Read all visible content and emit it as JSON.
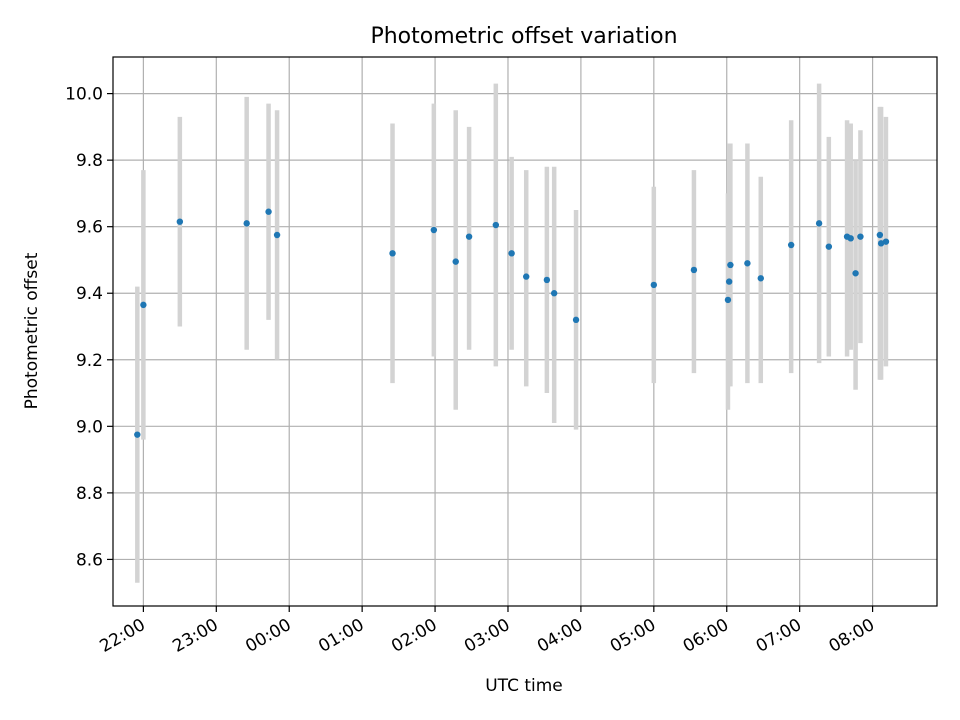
{
  "chart_data": {
    "type": "scatter",
    "title": "Photometric offset variation",
    "xlabel": "UTC time",
    "ylabel": "Photometric offset",
    "x_ticks": [
      "22:00",
      "23:00",
      "00:00",
      "01:00",
      "02:00",
      "03:00",
      "04:00",
      "05:00",
      "06:00",
      "07:00",
      "08:00"
    ],
    "y_ticks": [
      "8.6",
      "8.8",
      "9.0",
      "9.2",
      "9.4",
      "9.6",
      "9.8",
      "10.0"
    ],
    "xlim": [
      "21:35",
      "08:53"
    ],
    "ylim": [
      8.46,
      10.11
    ],
    "grid": true,
    "series": [
      {
        "marker_color": "#1f77b4",
        "errorbar_color": "#d3d3d3",
        "points": [
          {
            "t": "21:55",
            "y": 8.975,
            "lo": 8.53,
            "hi": 9.42
          },
          {
            "t": "22:00",
            "y": 9.365,
            "lo": 8.96,
            "hi": 9.77
          },
          {
            "t": "22:30",
            "y": 9.615,
            "lo": 9.3,
            "hi": 9.93
          },
          {
            "t": "23:25",
            "y": 9.61,
            "lo": 9.23,
            "hi": 9.99
          },
          {
            "t": "23:43",
            "y": 9.645,
            "lo": 9.32,
            "hi": 9.97
          },
          {
            "t": "23:50",
            "y": 9.575,
            "lo": 9.2,
            "hi": 9.95
          },
          {
            "t": "01:25",
            "y": 9.52,
            "lo": 9.13,
            "hi": 9.91
          },
          {
            "t": "01:59",
            "y": 9.59,
            "lo": 9.21,
            "hi": 9.97
          },
          {
            "t": "02:17",
            "y": 9.495,
            "lo": 9.05,
            "hi": 9.95
          },
          {
            "t": "02:28",
            "y": 9.57,
            "lo": 9.23,
            "hi": 9.9
          },
          {
            "t": "02:50",
            "y": 9.605,
            "lo": 9.18,
            "hi": 10.03
          },
          {
            "t": "03:03",
            "y": 9.52,
            "lo": 9.23,
            "hi": 9.81
          },
          {
            "t": "03:15",
            "y": 9.45,
            "lo": 9.12,
            "hi": 9.77
          },
          {
            "t": "03:32",
            "y": 9.44,
            "lo": 9.1,
            "hi": 9.78
          },
          {
            "t": "03:38",
            "y": 9.4,
            "lo": 9.01,
            "hi": 9.78
          },
          {
            "t": "03:56",
            "y": 9.32,
            "lo": 8.99,
            "hi": 9.65
          },
          {
            "t": "05:00",
            "y": 9.425,
            "lo": 9.13,
            "hi": 9.72
          },
          {
            "t": "05:33",
            "y": 9.47,
            "lo": 9.16,
            "hi": 9.77
          },
          {
            "t": "06:01",
            "y": 9.38,
            "lo": 9.05,
            "hi": 9.7
          },
          {
            "t": "06:02",
            "y": 9.435,
            "lo": 9.12,
            "hi": 9.85
          },
          {
            "t": "06:03",
            "y": 9.485,
            "lo": 9.12,
            "hi": 9.85
          },
          {
            "t": "06:17",
            "y": 9.49,
            "lo": 9.13,
            "hi": 9.85
          },
          {
            "t": "06:28",
            "y": 9.445,
            "lo": 9.13,
            "hi": 9.75
          },
          {
            "t": "06:53",
            "y": 9.545,
            "lo": 9.16,
            "hi": 9.92
          },
          {
            "t": "07:16",
            "y": 9.61,
            "lo": 9.19,
            "hi": 10.03
          },
          {
            "t": "07:24",
            "y": 9.54,
            "lo": 9.21,
            "hi": 9.87
          },
          {
            "t": "07:39",
            "y": 9.57,
            "lo": 9.21,
            "hi": 9.92
          },
          {
            "t": "07:42",
            "y": 9.565,
            "lo": 9.23,
            "hi": 9.91
          },
          {
            "t": "07:46",
            "y": 9.46,
            "lo": 9.11,
            "hi": 9.8
          },
          {
            "t": "07:50",
            "y": 9.57,
            "lo": 9.25,
            "hi": 9.89
          },
          {
            "t": "08:06",
            "y": 9.575,
            "lo": 9.14,
            "hi": 9.96
          },
          {
            "t": "08:07",
            "y": 9.55,
            "lo": 9.14,
            "hi": 9.96
          },
          {
            "t": "08:11",
            "y": 9.555,
            "lo": 9.18,
            "hi": 9.93
          }
        ]
      }
    ]
  }
}
